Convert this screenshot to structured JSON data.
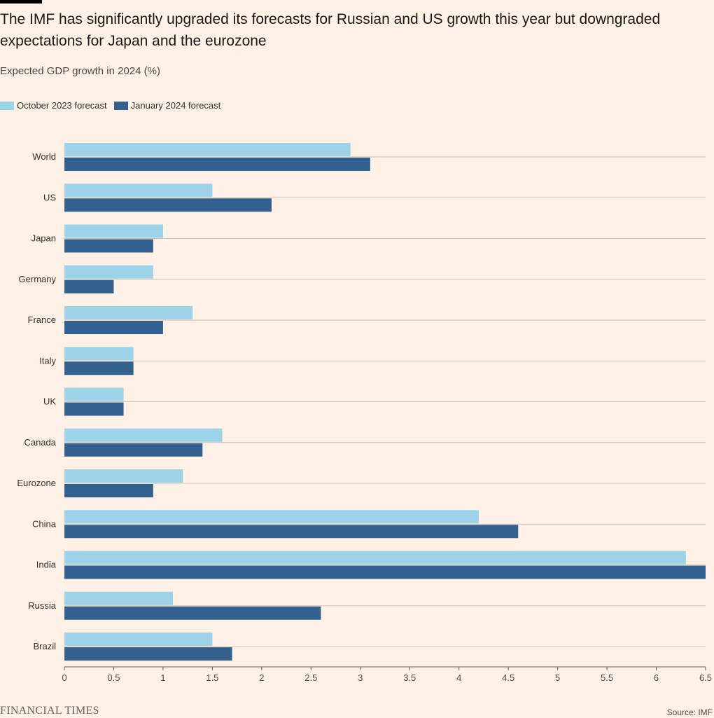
{
  "header": {
    "title": "The IMF has significantly upgraded its forecasts for Russian and US growth this year but downgraded expectations for Japan and the eurozone",
    "subtitle": "Expected GDP growth in 2024 (%)"
  },
  "legend": {
    "items": [
      {
        "label": "October 2023 forecast",
        "color": "#9dd3e8"
      },
      {
        "label": "January 2024 forecast",
        "color": "#32608f"
      }
    ]
  },
  "footer": {
    "brand": "FINANCIAL TIMES",
    "source": "Source: IMF"
  },
  "chart_data": {
    "type": "bar",
    "orientation": "horizontal",
    "categories": [
      "World",
      "US",
      "Japan",
      "Germany",
      "France",
      "Italy",
      "UK",
      "Canada",
      "Eurozone",
      "China",
      "India",
      "Russia",
      "Brazil"
    ],
    "series": [
      {
        "name": "October 2023 forecast",
        "color": "#9dd3e8",
        "values": [
          2.9,
          1.5,
          1.0,
          0.9,
          1.3,
          0.7,
          0.6,
          1.6,
          1.2,
          4.2,
          6.3,
          1.1,
          1.5
        ]
      },
      {
        "name": "January 2024 forecast",
        "color": "#32608f",
        "values": [
          3.1,
          2.1,
          0.9,
          0.5,
          1.0,
          0.7,
          0.6,
          1.4,
          0.9,
          4.6,
          6.5,
          2.6,
          1.7
        ]
      }
    ],
    "xlim": [
      0,
      6.5
    ],
    "xticks": [
      "0",
      "0.5",
      "1",
      "1.5",
      "2",
      "2.5",
      "3",
      "3.5",
      "4",
      "4.5",
      "5",
      "5.5",
      "6",
      "6.5"
    ],
    "grid": true,
    "legend_position": "top-left"
  }
}
